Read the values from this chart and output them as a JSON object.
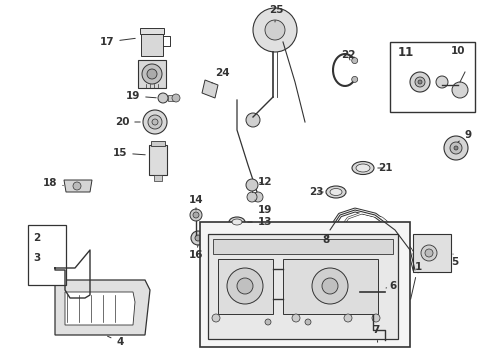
{
  "background_color": "#ffffff",
  "line_color": "#333333",
  "label_fontsize": 7.5,
  "figsize": [
    4.89,
    3.6
  ],
  "dpi": 100
}
